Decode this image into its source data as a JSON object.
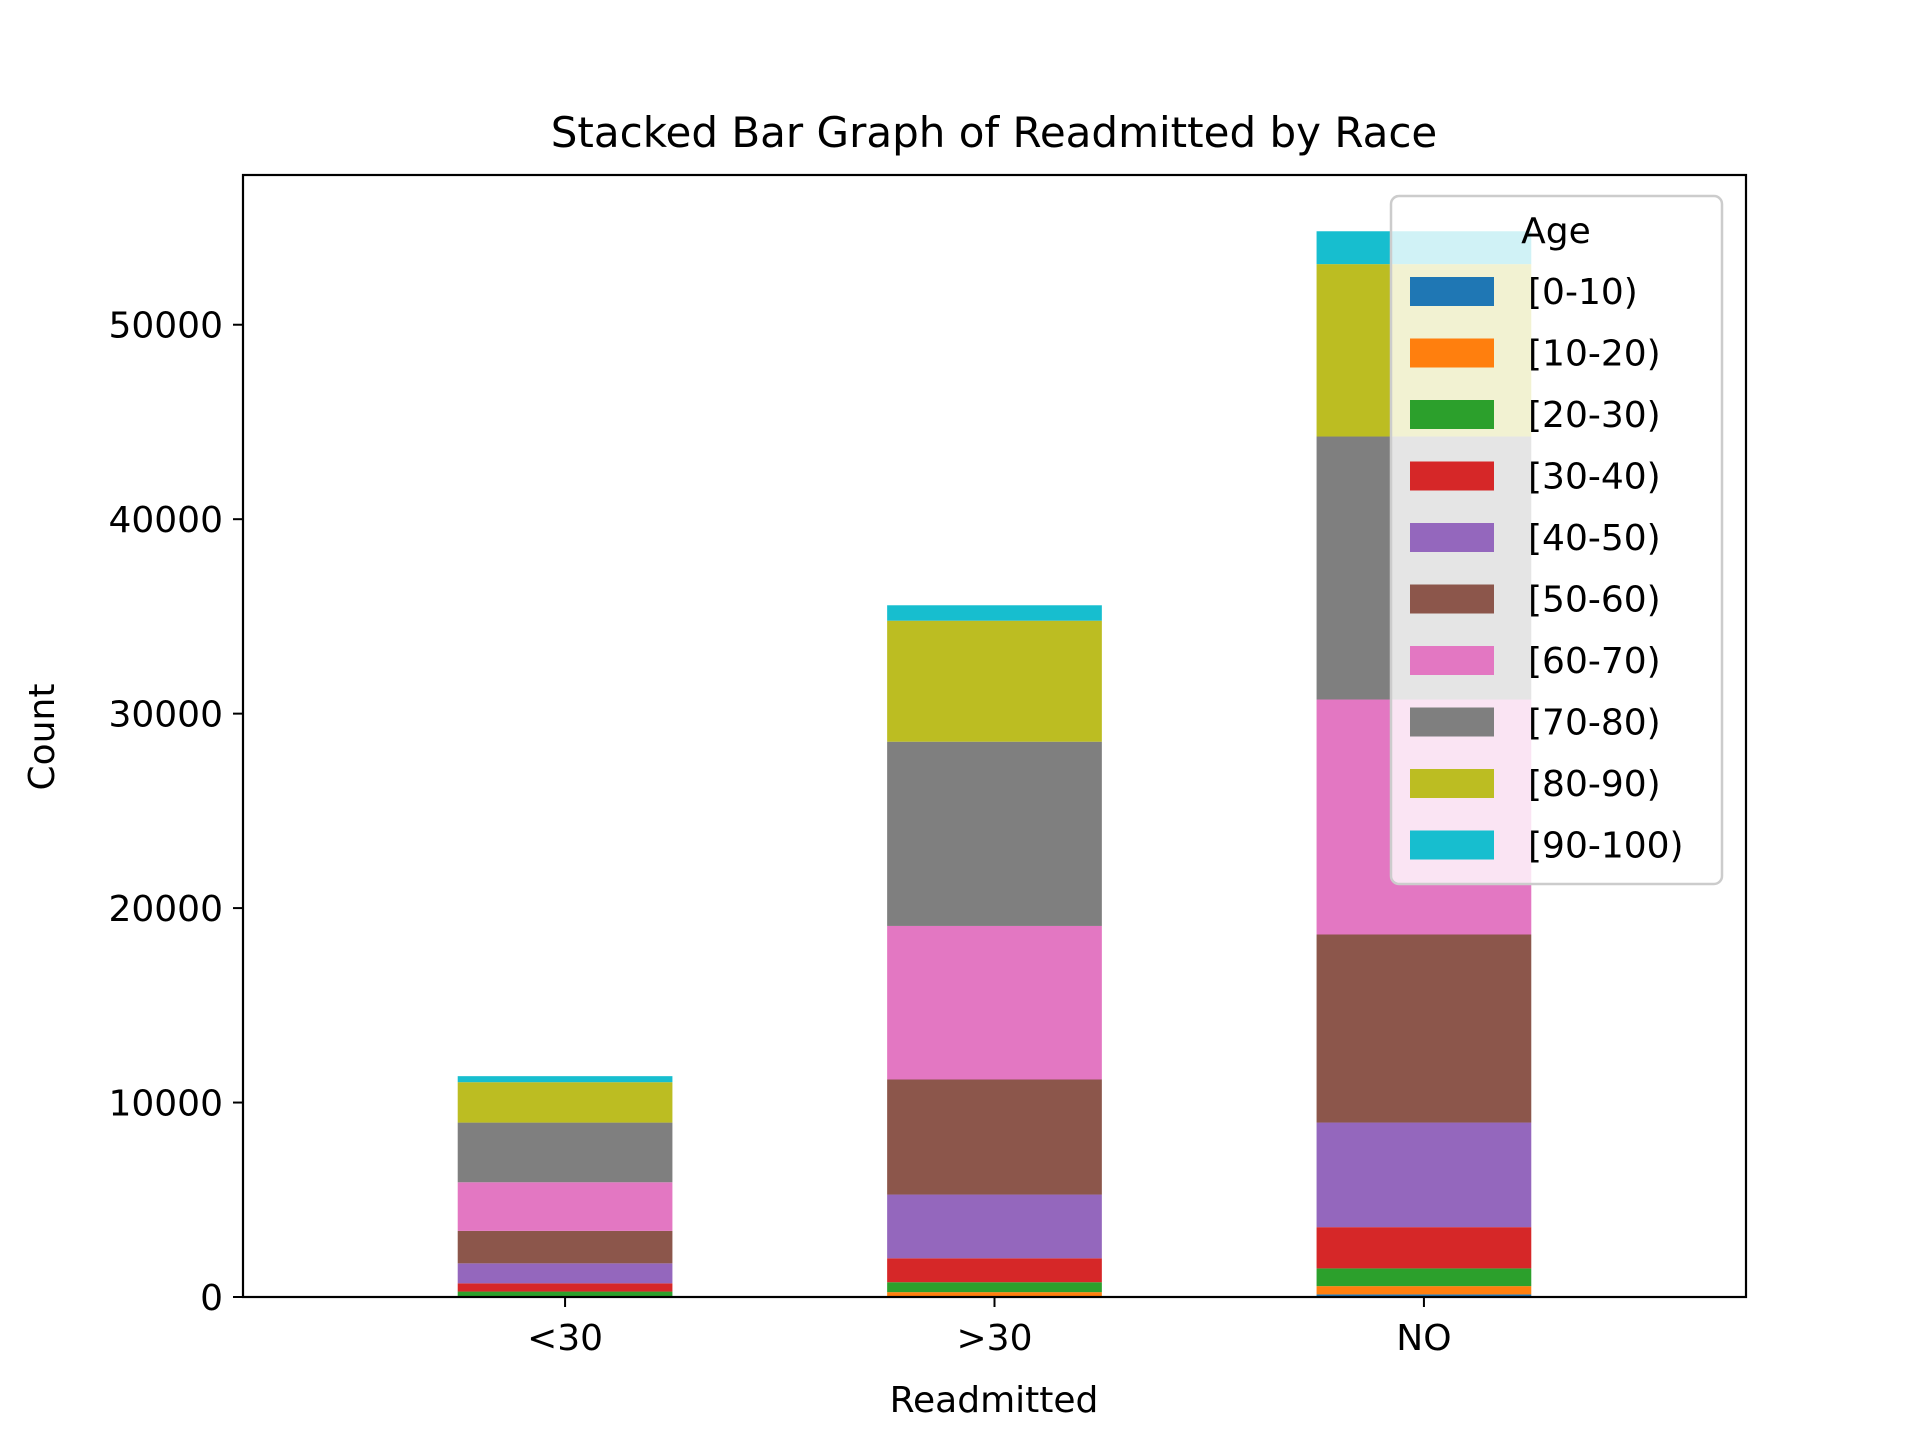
{
  "chart_data": {
    "type": "bar",
    "stacked": true,
    "title": "Stacked Bar Graph of Readmitted by Race",
    "xlabel": "Readmitted",
    "ylabel": "Count",
    "categories": [
      "<30",
      ">30",
      "NO"
    ],
    "ylim": [
      0,
      57700
    ],
    "yticks": [
      0,
      10000,
      20000,
      30000,
      40000,
      50000
    ],
    "ytick_labels": [
      "0",
      "10000",
      "20000",
      "30000",
      "40000",
      "50000"
    ],
    "grid": false,
    "legend": {
      "title": "Age",
      "position": "top-right"
    },
    "series": [
      {
        "name": "[0-10)",
        "color": "#1f77b4",
        "values": [
          3,
          26,
          132
        ]
      },
      {
        "name": "[10-20)",
        "color": "#ff7f0e",
        "values": [
          40,
          224,
          427
        ]
      },
      {
        "name": "[20-30)",
        "color": "#2ca02c",
        "values": [
          236,
          510,
          911
        ]
      },
      {
        "name": "[30-40)",
        "color": "#d62728",
        "values": [
          424,
          1230,
          2121
        ]
      },
      {
        "name": "[40-50)",
        "color": "#9467bd",
        "values": [
          1027,
          3278,
          5380
        ]
      },
      {
        "name": "[50-60)",
        "color": "#8c564b",
        "values": [
          1668,
          5917,
          9671
        ]
      },
      {
        "name": "[60-70)",
        "color": "#e377c2",
        "values": [
          2502,
          7897,
          12084
        ]
      },
      {
        "name": "[70-80)",
        "color": "#7f7f7f",
        "values": [
          3069,
          9475,
          13525
        ]
      },
      {
        "name": "[80-90)",
        "color": "#bcbd22",
        "values": [
          2078,
          6223,
          8866
        ]
      },
      {
        "name": "[90-100)",
        "color": "#17becf",
        "values": [
          310,
          793,
          1690
        ]
      }
    ]
  }
}
